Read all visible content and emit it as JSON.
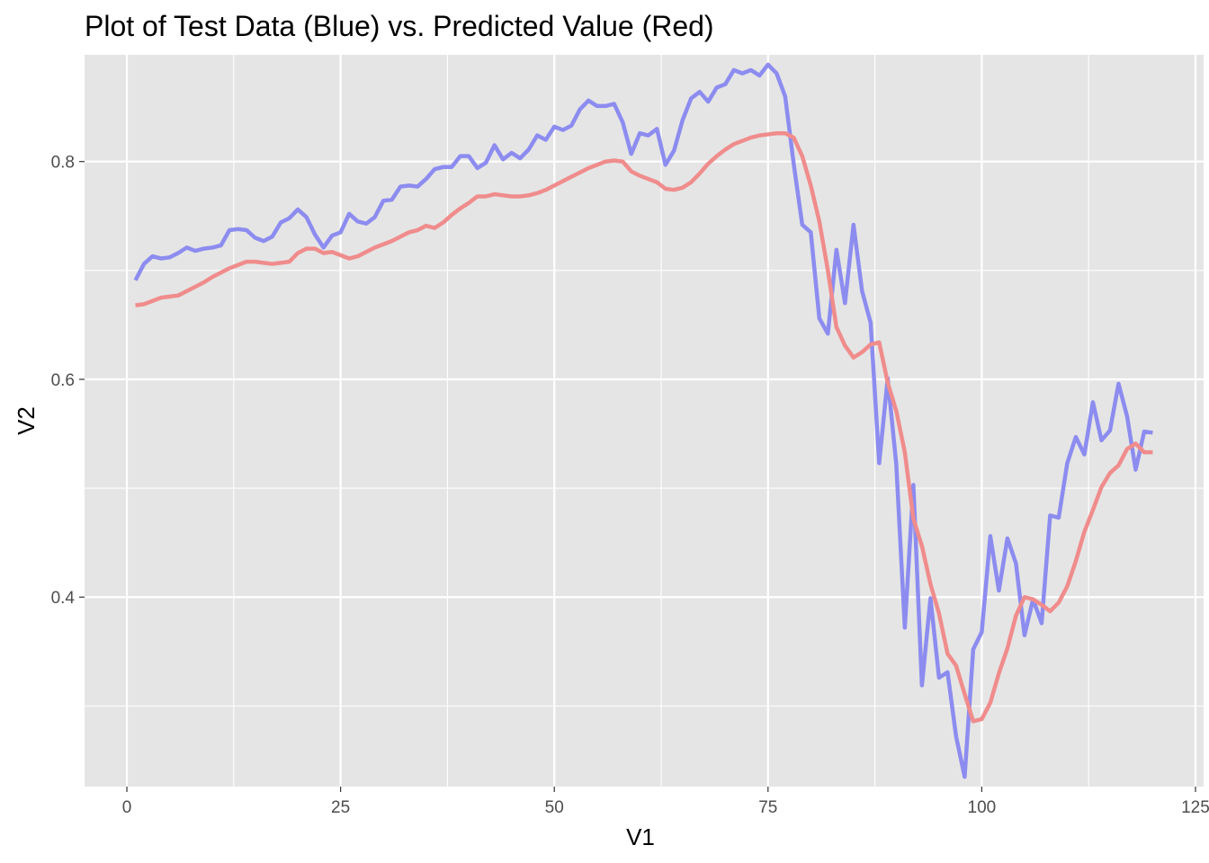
{
  "chart_data": {
    "type": "line",
    "title": "Plot of Test Data (Blue) vs. Predicted Value (Red)",
    "xlabel": "V1",
    "ylabel": "V2",
    "xlim": [
      -4.95,
      125.95
    ],
    "ylim": [
      0.226,
      0.898
    ],
    "xticks": [
      0,
      25,
      50,
      75,
      100,
      125
    ],
    "xtick_labels": [
      "0",
      "25",
      "50",
      "75",
      "100",
      "125"
    ],
    "yticks": [
      0.4,
      0.6,
      0.8
    ],
    "ytick_labels": [
      "0.4",
      "0.6",
      "0.8"
    ],
    "grid": true,
    "background": "#e5e5e5",
    "grid_color": "#ffffff",
    "series": [
      {
        "color": "#8c8cf0",
        "x": [
          1,
          2,
          3,
          4,
          5,
          6,
          7,
          8,
          9,
          10,
          11,
          12,
          13,
          14,
          15,
          16,
          17,
          18,
          19,
          20,
          21,
          22,
          23,
          24,
          25,
          26,
          27,
          28,
          29,
          30,
          31,
          32,
          33,
          34,
          35,
          36,
          37,
          38,
          39,
          40,
          41,
          42,
          43,
          44,
          45,
          46,
          47,
          48,
          49,
          50,
          51,
          52,
          53,
          54,
          55,
          56,
          57,
          58,
          59,
          60,
          61,
          62,
          63,
          64,
          65,
          66,
          67,
          68,
          69,
          70,
          71,
          72,
          73,
          74,
          75,
          76,
          77,
          78,
          79,
          80,
          81,
          82,
          83,
          84,
          85,
          86,
          87,
          88,
          89,
          90,
          91,
          92,
          93,
          94,
          95,
          96,
          97,
          98,
          99,
          100,
          101,
          102,
          103,
          104,
          105,
          106,
          107,
          108,
          109,
          110,
          111,
          112,
          113,
          114,
          115,
          116,
          117,
          118,
          119,
          120
        ],
        "values": [
          0.691,
          0.706,
          0.713,
          0.711,
          0.712,
          0.716,
          0.721,
          0.718,
          0.72,
          0.721,
          0.723,
          0.737,
          0.738,
          0.737,
          0.73,
          0.727,
          0.731,
          0.744,
          0.748,
          0.756,
          0.749,
          0.733,
          0.721,
          0.732,
          0.735,
          0.752,
          0.745,
          0.743,
          0.749,
          0.764,
          0.765,
          0.777,
          0.778,
          0.777,
          0.784,
          0.793,
          0.795,
          0.795,
          0.805,
          0.805,
          0.794,
          0.799,
          0.815,
          0.802,
          0.808,
          0.803,
          0.811,
          0.824,
          0.82,
          0.832,
          0.829,
          0.833,
          0.848,
          0.856,
          0.851,
          0.851,
          0.853,
          0.836,
          0.807,
          0.826,
          0.824,
          0.83,
          0.797,
          0.81,
          0.838,
          0.858,
          0.864,
          0.855,
          0.868,
          0.871,
          0.884,
          0.881,
          0.884,
          0.879,
          0.889,
          0.881,
          0.86,
          0.798,
          0.742,
          0.735,
          0.656,
          0.642,
          0.719,
          0.67,
          0.742,
          0.681,
          0.652,
          0.523,
          0.601,
          0.522,
          0.372,
          0.503,
          0.319,
          0.399,
          0.326,
          0.331,
          0.272,
          0.235,
          0.352,
          0.368,
          0.456,
          0.406,
          0.454,
          0.431,
          0.365,
          0.398,
          0.376,
          0.475,
          0.473,
          0.523,
          0.547,
          0.531,
          0.579,
          0.544,
          0.553,
          0.596,
          0.566,
          0.517,
          0.552,
          0.551
        ]
      },
      {
        "color": "#f08c8c",
        "x": [
          1,
          2,
          3,
          4,
          5,
          6,
          7,
          8,
          9,
          10,
          11,
          12,
          13,
          14,
          15,
          16,
          17,
          18,
          19,
          20,
          21,
          22,
          23,
          24,
          25,
          26,
          27,
          28,
          29,
          30,
          31,
          32,
          33,
          34,
          35,
          36,
          37,
          38,
          39,
          40,
          41,
          42,
          43,
          44,
          45,
          46,
          47,
          48,
          49,
          50,
          51,
          52,
          53,
          54,
          55,
          56,
          57,
          58,
          59,
          60,
          61,
          62,
          63,
          64,
          65,
          66,
          67,
          68,
          69,
          70,
          71,
          72,
          73,
          74,
          75,
          76,
          77,
          78,
          79,
          80,
          81,
          82,
          83,
          84,
          85,
          86,
          87,
          88,
          89,
          90,
          91,
          92,
          93,
          94,
          95,
          96,
          97,
          98,
          99,
          100,
          101,
          102,
          103,
          104,
          105,
          106,
          107,
          108,
          109,
          110,
          111,
          112,
          113,
          114,
          115,
          116,
          117,
          118,
          119,
          120
        ],
        "values": [
          0.668,
          0.669,
          0.672,
          0.675,
          0.676,
          0.677,
          0.681,
          0.685,
          0.689,
          0.694,
          0.698,
          0.702,
          0.705,
          0.708,
          0.708,
          0.707,
          0.706,
          0.707,
          0.708,
          0.716,
          0.72,
          0.72,
          0.716,
          0.717,
          0.714,
          0.711,
          0.713,
          0.717,
          0.721,
          0.724,
          0.727,
          0.731,
          0.735,
          0.737,
          0.741,
          0.739,
          0.744,
          0.751,
          0.757,
          0.762,
          0.768,
          0.768,
          0.77,
          0.769,
          0.768,
          0.768,
          0.769,
          0.771,
          0.774,
          0.778,
          0.782,
          0.786,
          0.79,
          0.794,
          0.797,
          0.8,
          0.801,
          0.8,
          0.791,
          0.787,
          0.784,
          0.781,
          0.775,
          0.774,
          0.776,
          0.781,
          0.789,
          0.798,
          0.805,
          0.811,
          0.816,
          0.819,
          0.822,
          0.824,
          0.825,
          0.826,
          0.826,
          0.822,
          0.805,
          0.778,
          0.745,
          0.7,
          0.648,
          0.631,
          0.62,
          0.625,
          0.632,
          0.634,
          0.597,
          0.571,
          0.533,
          0.472,
          0.447,
          0.412,
          0.385,
          0.348,
          0.337,
          0.311,
          0.286,
          0.288,
          0.303,
          0.33,
          0.353,
          0.383,
          0.4,
          0.398,
          0.393,
          0.387,
          0.395,
          0.41,
          0.433,
          0.46,
          0.48,
          0.501,
          0.514,
          0.521,
          0.536,
          0.541,
          0.533,
          0.533
        ]
      }
    ]
  }
}
